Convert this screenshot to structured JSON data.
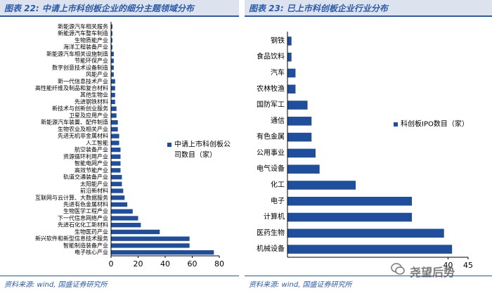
{
  "chart_data": [
    {
      "type": "bar",
      "orientation": "horizontal",
      "figure_title": "图表 22:  中请上市科创板企业的细分主题领域分布",
      "source": "资料来源:  wind, 国盛证券研究所",
      "legend": "中请上市科创板公司数目（家）",
      "color": "#1f4e9c",
      "xlim": [
        0,
        80
      ],
      "xticks": [
        0,
        20,
        40,
        60,
        80
      ],
      "categories": [
        "新能源汽车相关服务",
        "新能源汽车整车制造",
        "生物质能产业",
        "海洋工程装备产业",
        "新能源汽车相关设施制造",
        "节能环保产业",
        "数字创意技术设备制造",
        "风能产业",
        "新一代信息技术产业",
        "高性能纤维及制品和复合材料",
        "其他生物业",
        "先进钢铁材料",
        "新技术与创新创业服务",
        "卫星及应用产业",
        "新能源汽车装置、配件制造",
        "生物农业及相关产业",
        "先进无机非金属材料",
        "人工智能",
        "航空装备产业",
        "资源循环利用产业",
        "智能电网产业",
        "高效节能产业",
        "轨道交通装备产业",
        "太阳能产业",
        "前沿新材料",
        "互联网与云计算、大数据服务",
        "先进有色金属材料",
        "生物医学工程产业",
        "下一代信息网络产业",
        "先进石化化工新材料",
        "生物医药产业",
        "新兴软件和新型信息技术服务",
        "智能制造装备产业",
        "电子核心产业"
      ],
      "values": [
        1,
        1,
        1,
        1,
        2,
        2,
        2,
        2,
        3,
        3,
        3,
        3,
        4,
        4,
        5,
        5,
        6,
        6,
        7,
        7,
        7,
        7,
        8,
        8,
        9,
        10,
        12,
        16,
        20,
        22,
        36,
        58,
        58,
        76
      ]
    },
    {
      "type": "bar",
      "orientation": "horizontal",
      "figure_title": "图表 23:  已上市科创板企业行业分布",
      "source": "资料来源:  wind, 国盛证券研究所",
      "legend": "科创板IPO数目（家）",
      "color": "#1f4e9c",
      "xlim": [
        0,
        45
      ],
      "xticks": [
        40,
        45
      ],
      "categories": [
        "钢铁",
        "食品饮料",
        "汽车",
        "农林牧渔",
        "国防军工",
        "通信",
        "有色金属",
        "公用事业",
        "电气设备",
        "化工",
        "电子",
        "计算机",
        "医药生物",
        "机械设备"
      ],
      "values": [
        1,
        1,
        2,
        2,
        5,
        6,
        6,
        7,
        8,
        17,
        31,
        31,
        39,
        41
      ]
    }
  ],
  "watermark": "尧望后势"
}
